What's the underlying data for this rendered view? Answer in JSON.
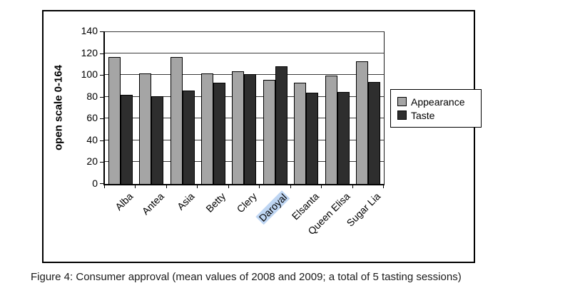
{
  "figure": {
    "caption": "Figure 4: Consumer approval (mean values of 2008 and 2009; a total of 5 tasting sessions)"
  },
  "chart_data": {
    "type": "bar",
    "title": "",
    "xlabel": "",
    "ylabel": "open scale 0-164",
    "ylim": [
      0,
      140
    ],
    "yticks": [
      0,
      20,
      40,
      60,
      80,
      100,
      120,
      140
    ],
    "grid": true,
    "legend_position": "right-of-plot",
    "categories": [
      "Alba",
      "Antea",
      "Asia",
      "Betty",
      "Clery",
      "Daroyal",
      "Elsanta",
      "Queen Elisa",
      "Sugar Lia"
    ],
    "highlighted_category": "Daroyal",
    "series": [
      {
        "name": "Appearance",
        "color": "#a5a5a5",
        "values": [
          116,
          101,
          116,
          101,
          103,
          95,
          92,
          99,
          112
        ]
      },
      {
        "name": "Taste",
        "color": "#2e2e2e",
        "values": [
          81,
          80,
          85,
          92,
          100,
          107,
          83,
          84,
          93
        ]
      }
    ]
  },
  "colors": {
    "highlight": "#bfd6f3",
    "chart_border": "#000000",
    "background": "#ffffff"
  }
}
